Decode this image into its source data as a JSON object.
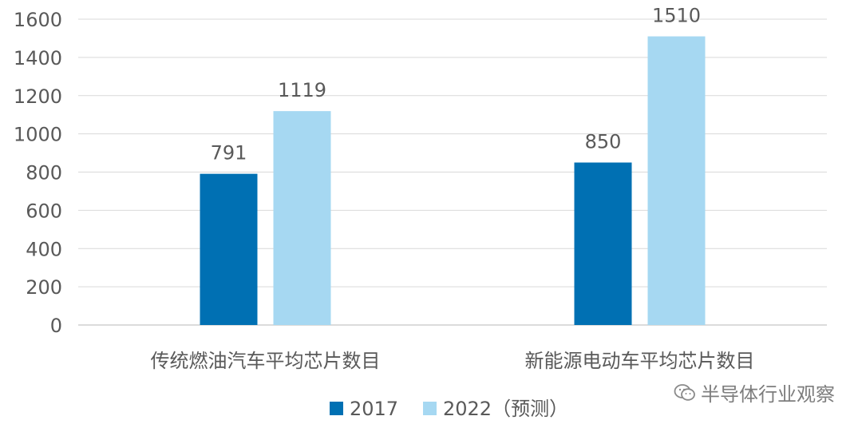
{
  "chart_data": {
    "type": "bar",
    "categories": [
      "传统燃油汽车平均芯片数目",
      "新能源电动车平均芯片数目"
    ],
    "series": [
      {
        "name": "2017",
        "values": [
          791,
          850
        ],
        "color": "#0070b3"
      },
      {
        "name": "2022（预测）",
        "values": [
          1119,
          1510
        ],
        "color": "#a6d8f2"
      }
    ],
    "ylim": [
      0,
      1600
    ],
    "yticks": [
      0,
      200,
      400,
      600,
      800,
      1000,
      1200,
      1400,
      1600
    ],
    "grid": true,
    "legend_position": "bottom",
    "data_labels": true,
    "title": "",
    "xlabel": "",
    "ylabel": ""
  },
  "watermark": {
    "text": "半导体行业观察",
    "icon": "wechat-icon"
  }
}
